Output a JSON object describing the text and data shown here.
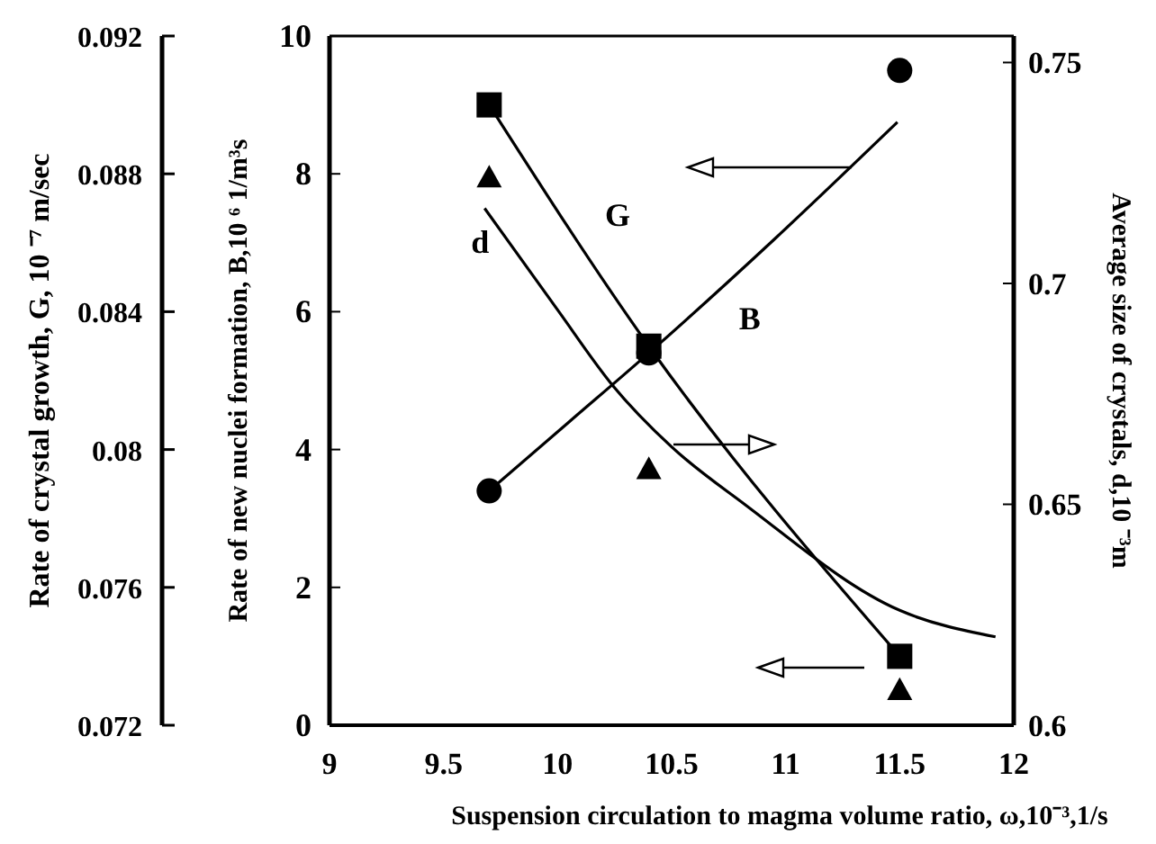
{
  "chart_data": {
    "type": "line",
    "xlabel": "Suspension circulation to magma volume ratio,   ω,10⁻³,1/s",
    "ylabel": "Rate of new nuclei formation, B,10 ⁶ 1/m³s",
    "y2label": "Average size of crystals, d,10 ⁻³m",
    "y3label": "Rate of crystal growth, G, 10 ⁻⁷ m/sec",
    "xlim": [
      9,
      12
    ],
    "xticks": [
      9,
      9.5,
      10,
      10.5,
      11,
      11.5,
      12
    ],
    "ylim": [
      0,
      10
    ],
    "yticks": [
      0,
      2,
      4,
      6,
      8,
      10
    ],
    "y2lim": [
      0.6,
      0.756
    ],
    "y2ticks": [
      0.6,
      0.65,
      0.7,
      0.75
    ],
    "y3lim": [
      0.072,
      0.092
    ],
    "y3ticks": [
      0.072,
      0.076,
      0.08,
      0.084,
      0.088,
      0.092
    ],
    "grid": false,
    "series": [
      {
        "name": "G",
        "axis": "y3",
        "marker": "square",
        "color": "#000000",
        "x": [
          9.7,
          10.4,
          11.5
        ],
        "values": [
          0.09,
          0.083,
          0.074
        ]
      },
      {
        "name": "B",
        "type": "scatter",
        "axis": "y",
        "marker": "circle",
        "color": "#000000",
        "x": [
          9.7,
          10.4,
          11.5
        ],
        "values": [
          3.4,
          5.4,
          9.5
        ]
      },
      {
        "axis": "y",
        "marker": "none",
        "color": "#000000",
        "x": [
          9.7,
          10.05,
          10.4,
          10.95,
          11.49
        ],
        "values": [
          3.4,
          4.4,
          5.4,
          7.05,
          8.75
        ]
      },
      {
        "name": "d",
        "type": "scatter",
        "axis": "y2",
        "marker": "triangle",
        "color": "#000000",
        "x": [
          9.7,
          10.4,
          11.5
        ],
        "values": [
          0.724,
          0.658,
          0.608
        ]
      },
      {
        "axis": "y2",
        "marker": "none",
        "color": "#000000",
        "x": [
          9.68,
          10.0,
          10.24,
          10.5,
          10.82,
          11.5,
          11.92
        ],
        "values": [
          0.717,
          0.694,
          0.677,
          0.663,
          0.65,
          0.626,
          0.62
        ]
      }
    ]
  }
}
